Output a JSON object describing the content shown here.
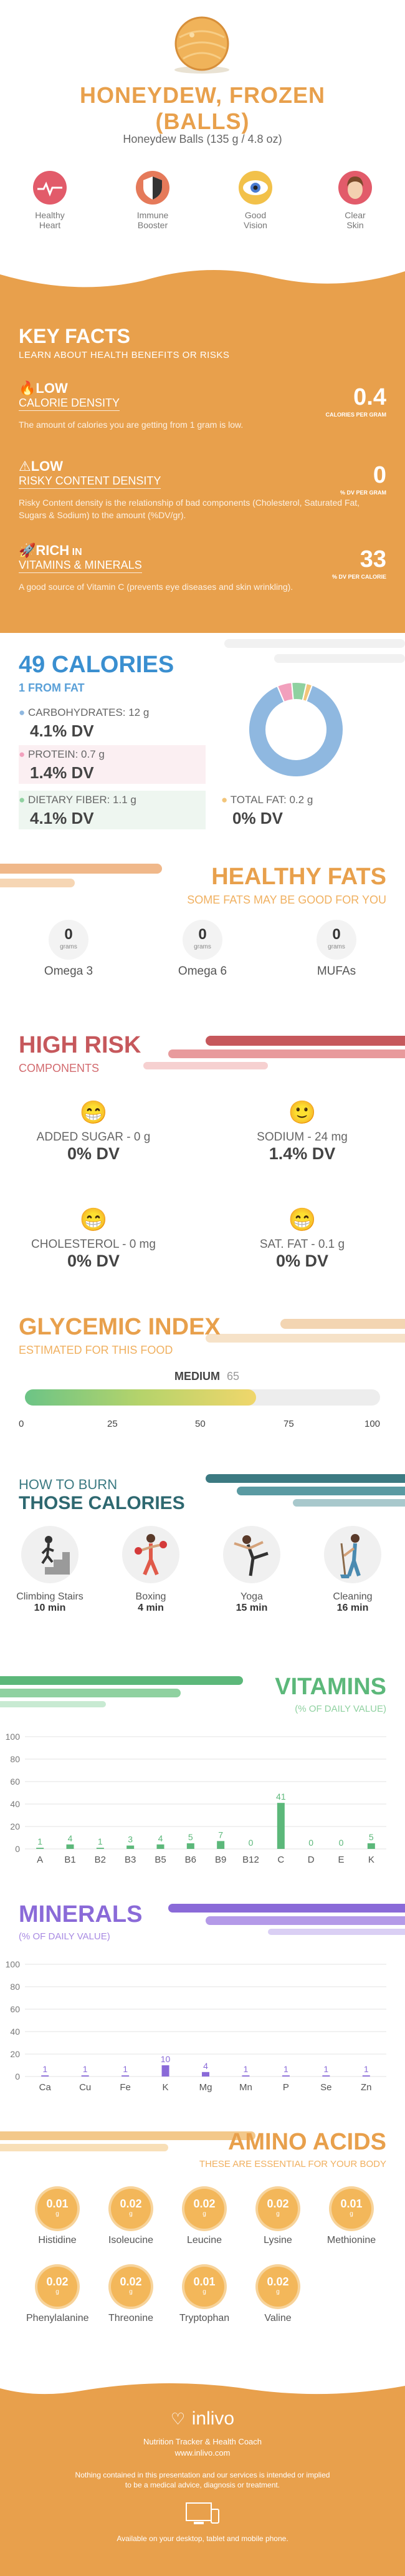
{
  "hero": {
    "title_line1": "HONEYDEW, FROZEN",
    "title_line2": "(BALLS)",
    "serving": "Honeydew Balls (135 g / 4.8 oz)"
  },
  "benefits": [
    {
      "label_l1": "Healthy",
      "label_l2": "Heart",
      "icon": "heart-icon"
    },
    {
      "label_l1": "Immune",
      "label_l2": "Booster",
      "icon": "shield-icon"
    },
    {
      "label_l1": "Good",
      "label_l2": "Vision",
      "icon": "eye-icon"
    },
    {
      "label_l1": "Clear",
      "label_l2": "Skin",
      "icon": "face-icon"
    }
  ],
  "key_facts": {
    "title": "KEY FACTS",
    "subtitle": "LEARN ABOUT HEALTH BENEFITS OR RISKS",
    "items": [
      {
        "level": "LOW",
        "name": "CALORIE DENSITY",
        "value": "0.4",
        "unit": "CALORIES PER GRAM",
        "desc": "The amount of calories you are getting from 1 gram is low."
      },
      {
        "level": "LOW",
        "name": "RISKY CONTENT DENSITY",
        "value": "0",
        "unit": "% DV PER GRAM",
        "desc": "Risky Content density is the relationship of bad components (Cholesterol, Saturated Fat, Sugars & Sodium) to the amount (%DV/gr)."
      },
      {
        "level": "RICH",
        "level_suffix": "IN",
        "name": "VITAMINS & MINERALS",
        "value": "33",
        "unit": "% DV PER CALORIE",
        "desc": "A good source of Vitamin C (prevents eye diseases and skin wrinkling)."
      }
    ]
  },
  "calories": {
    "title": "49 CALORIES",
    "subtitle": "1 FROM FAT",
    "carbs_label": "CARBOHYDRATES: 12 g",
    "carbs_dv": "4.1% DV",
    "protein_label": "PROTEIN: 0.7 g",
    "protein_dv": "1.4% DV",
    "fiber_label": "DIETARY FIBER: 1.1 g",
    "fiber_dv": "4.1% DV",
    "fat_label": "TOTAL FAT: 0.2 g",
    "fat_dv": "0% DV",
    "colors": {
      "carbs": "#8fb8e0",
      "protein": "#f2a0bd",
      "fiber": "#8fd1a0",
      "fat": "#f2c57a"
    },
    "donut": [
      {
        "name": "carbs",
        "value": 88
      },
      {
        "name": "protein",
        "value": 5
      },
      {
        "name": "fiber",
        "value": 5
      },
      {
        "name": "fat",
        "value": 2
      }
    ]
  },
  "healthy_fats": {
    "title": "HEALTHY FATS",
    "subtitle": "SOME FATS MAY BE GOOD FOR YOU",
    "items": [
      {
        "value": "0",
        "unit": "grams",
        "name": "Omega 3"
      },
      {
        "value": "0",
        "unit": "grams",
        "name": "Omega 6"
      },
      {
        "value": "0",
        "unit": "grams",
        "name": "MUFAs"
      }
    ]
  },
  "high_risk": {
    "title": "HIGH RISK",
    "subtitle": "COMPONENTS",
    "items": [
      {
        "label": "ADDED SUGAR - 0 g",
        "dv": "0% DV"
      },
      {
        "label": "SODIUM - 24 mg",
        "dv": "1.4% DV"
      },
      {
        "label": "CHOLESTEROL - 0 mg",
        "dv": "0% DV"
      },
      {
        "label": "SAT. FAT - 0.1 g",
        "dv": "0% DV"
      }
    ]
  },
  "glycemic": {
    "title": "GLYCEMIC INDEX",
    "subtitle": "ESTIMATED FOR THIS FOOD",
    "level": "MEDIUM",
    "value": "65",
    "value_num": 65,
    "ticks": [
      "0",
      "25",
      "50",
      "75",
      "100"
    ]
  },
  "burn": {
    "title_l1": "HOW TO BURN",
    "title_l2": "THOSE CALORIES",
    "items": [
      {
        "name": "Climbing Stairs",
        "time": "10 min"
      },
      {
        "name": "Boxing",
        "time": "4 min"
      },
      {
        "name": "Yoga",
        "time": "15 min"
      },
      {
        "name": "Cleaning",
        "time": "16 min"
      }
    ]
  },
  "vitamins": {
    "title": "VITAMINS",
    "subtitle": "(% OF DAILY VALUE)",
    "color": "#5cb87a",
    "chart_data": {
      "type": "bar",
      "categories": [
        "A",
        "B1",
        "B2",
        "B3",
        "B5",
        "B6",
        "B9",
        "B12",
        "C",
        "D",
        "E",
        "K"
      ],
      "values": [
        1,
        4,
        1,
        3,
        4,
        5,
        7,
        0,
        41,
        0,
        0,
        5
      ],
      "ylim": [
        0,
        100
      ],
      "yticks": [
        "0",
        "20",
        "40",
        "60",
        "80",
        "100"
      ]
    }
  },
  "minerals": {
    "title": "MINERALS",
    "subtitle": "(% OF DAILY VALUE)",
    "color": "#8a6ad8",
    "chart_data": {
      "type": "bar",
      "categories": [
        "Ca",
        "Cu",
        "Fe",
        "K",
        "Mg",
        "Mn",
        "P",
        "Se",
        "Zn"
      ],
      "values": [
        1,
        1,
        1,
        10,
        4,
        1,
        1,
        1,
        1
      ],
      "ylim": [
        0,
        100
      ],
      "yticks": [
        "0",
        "20",
        "40",
        "60",
        "80",
        "100"
      ]
    }
  },
  "amino": {
    "title": "AMINO ACIDS",
    "subtitle": "THESE ARE ESSENTIAL FOR YOUR BODY",
    "unit": "g",
    "items": [
      {
        "name": "Histidine",
        "value": "0.01"
      },
      {
        "name": "Isoleucine",
        "value": "0.02"
      },
      {
        "name": "Leucine",
        "value": "0.02"
      },
      {
        "name": "Lysine",
        "value": "0.02"
      },
      {
        "name": "Methionine",
        "value": "0.01"
      },
      {
        "name": "Phenylalanine",
        "value": "0.02"
      },
      {
        "name": "Threonine",
        "value": "0.02"
      },
      {
        "name": "Tryptophan",
        "value": "0.01"
      },
      {
        "name": "Valine",
        "value": "0.02"
      }
    ]
  },
  "footer": {
    "brand": "inlivo",
    "tagline": "Nutrition Tracker & Health Coach",
    "url": "www.inlivo.com",
    "disclaimer_l1": "Nothing contained in this presentation and our services is intended or implied",
    "disclaimer_l2": "to be a medical advice, diagnosis or treatment.",
    "available": "Available on your desktop, tablet and mobile phone."
  }
}
